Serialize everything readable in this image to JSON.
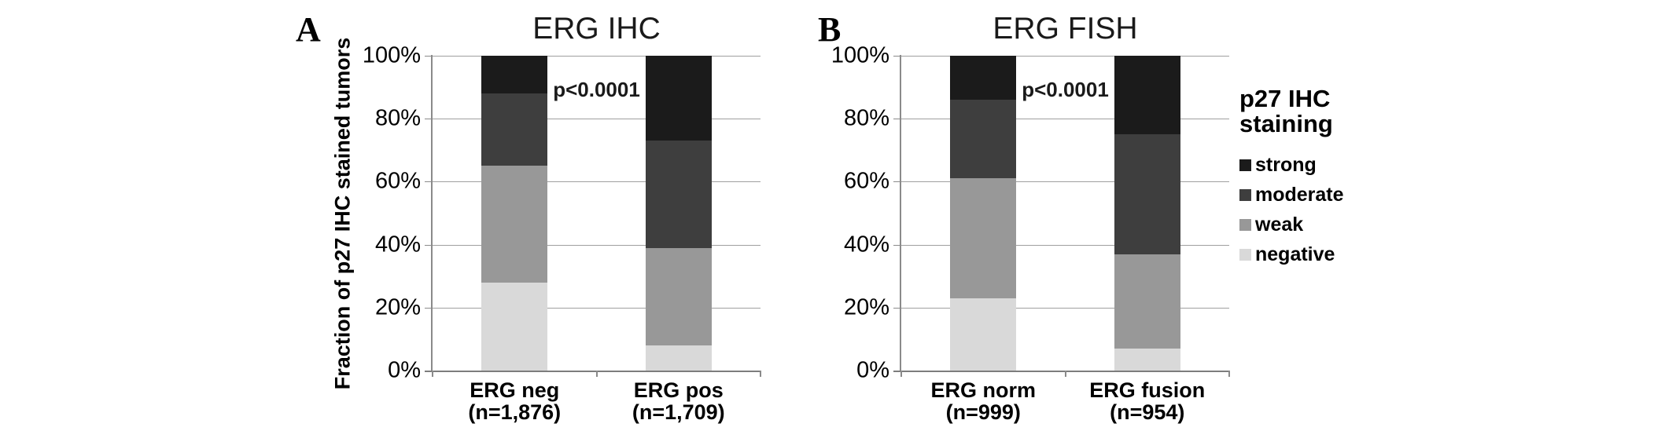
{
  "chart_data": [
    {
      "type": "stacked_bar",
      "panel_label": "A",
      "title": "ERG IHC",
      "ylabel": "Fraction of p27 IHC stained tumors",
      "annotation": "p<0.0001",
      "ylim": [
        0,
        100
      ],
      "yticks": [
        "0%",
        "20%",
        "40%",
        "60%",
        "80%",
        "100%"
      ],
      "grid": true,
      "categories": [
        {
          "label": "ERG neg",
          "n": "(n=1,876)"
        },
        {
          "label": "ERG pos",
          "n": "(n=1,709)"
        }
      ],
      "series": [
        {
          "name": "negative",
          "values": [
            28,
            8
          ]
        },
        {
          "name": "weak",
          "values": [
            37,
            31
          ]
        },
        {
          "name": "moderate",
          "values": [
            23,
            34
          ]
        },
        {
          "name": "strong",
          "values": [
            12,
            27
          ]
        }
      ]
    },
    {
      "type": "stacked_bar",
      "panel_label": "B",
      "title": "ERG FISH",
      "annotation": "p<0.0001",
      "ylim": [
        0,
        100
      ],
      "yticks": [
        "0%",
        "20%",
        "40%",
        "60%",
        "80%",
        "100%"
      ],
      "grid": true,
      "categories": [
        {
          "label": "ERG norm",
          "n": "(n=999)"
        },
        {
          "label": "ERG fusion",
          "n": "(n=954)"
        }
      ],
      "series": [
        {
          "name": "negative",
          "values": [
            23,
            7
          ]
        },
        {
          "name": "weak",
          "values": [
            38,
            30
          ]
        },
        {
          "name": "moderate",
          "values": [
            25,
            38
          ]
        },
        {
          "name": "strong",
          "values": [
            14,
            25
          ]
        }
      ]
    }
  ],
  "legend": {
    "title": "p27 IHC\nstaining",
    "position": "right",
    "items": [
      {
        "name": "strong",
        "label": "strong",
        "color": "#1b1b1b"
      },
      {
        "name": "moderate",
        "label": "moderate",
        "color": "#3e3e3e"
      },
      {
        "name": "weak",
        "label": "weak",
        "color": "#989898"
      },
      {
        "name": "negative",
        "label": "negative",
        "color": "#d9d9d9"
      }
    ]
  },
  "colors": {
    "axis": "#8a8a8a",
    "gridline": "#9f9f9f",
    "background": "#ffffff"
  }
}
